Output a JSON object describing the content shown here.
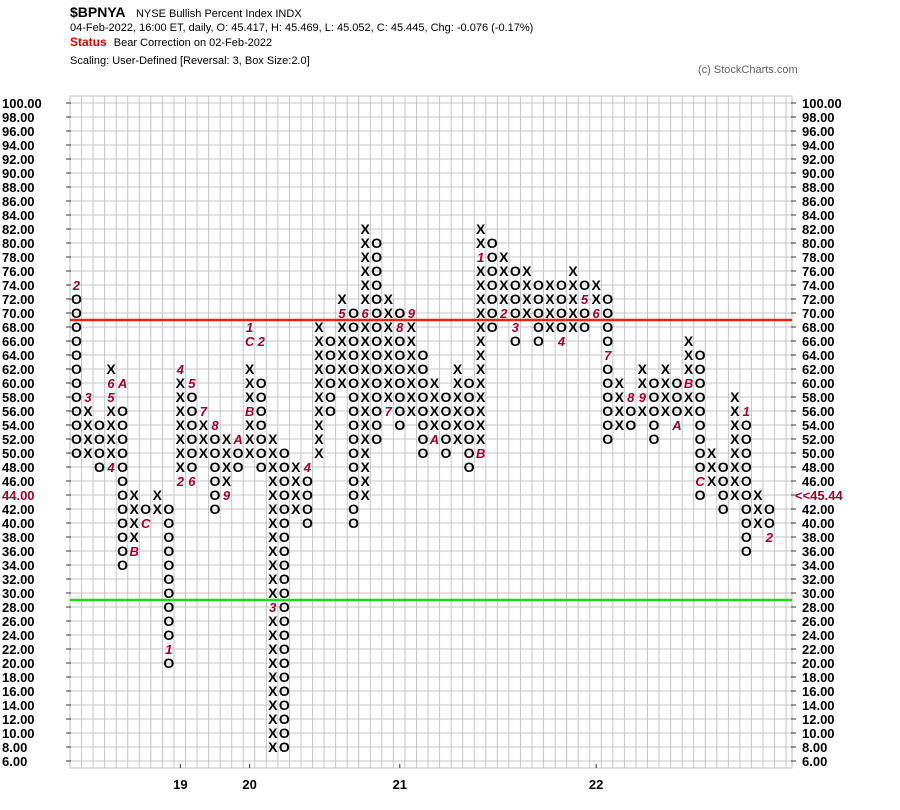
{
  "header": {
    "symbol": "$BPNYA",
    "name": "NYSE Bullish Percent Index  INDX",
    "quote": "04-Feb-2022, 16:00 ET, daily, O: 45.417, H: 45.469, L: 45.052, C: 45.445, Chg: -0.076 (-0.17%)",
    "status_label": "Status",
    "status_value": "Bear Correction on 02-Feb-2022",
    "scaling": "Scaling: User-Defined [Reversal: 3, Box Size:2.0]",
    "copyright": "(c) StockCharts.com"
  },
  "chart_data": {
    "type": "point-and-figure",
    "box_size": 2,
    "reversal": 3,
    "ylim": [
      6,
      100
    ],
    "y_ticks": [
      "100.00",
      "98.00",
      "96.00",
      "94.00",
      "92.00",
      "90.00",
      "88.00",
      "86.00",
      "84.00",
      "82.00",
      "80.00",
      "78.00",
      "76.00",
      "74.00",
      "72.00",
      "70.00",
      "68.00",
      "66.00",
      "64.00",
      "62.00",
      "60.00",
      "58.00",
      "56.00",
      "54.00",
      "52.00",
      "50.00",
      "48.00",
      "46.00",
      "44.00",
      "42.00",
      "40.00",
      "38.00",
      "36.00",
      "34.00",
      "32.00",
      "30.00",
      "28.00",
      "26.00",
      "24.00",
      "22.00",
      "20.00",
      "18.00",
      "16.00",
      "14.00",
      "12.00",
      "10.00",
      "8.00",
      "6.00"
    ],
    "left_highlight": {
      "value": 44,
      "label": "44.00"
    },
    "right_highlight": {
      "value": 44,
      "label": "<<45.44"
    },
    "x_labels": [
      {
        "col": 9,
        "label": "19"
      },
      {
        "col": 15,
        "label": "20"
      },
      {
        "col": 28,
        "label": "21"
      },
      {
        "col": 45,
        "label": "22"
      }
    ],
    "reference_lines": [
      {
        "value": 69,
        "color": "#e8230f"
      },
      {
        "value": 29,
        "color": "#18dc18"
      }
    ],
    "colors": {
      "grid": "#c4c4c4",
      "mark": "#000000",
      "month": "#99002e"
    },
    "columns": [
      {
        "t": "O",
        "lo": 50,
        "hi": 72,
        "m": [
          [
            74,
            "2"
          ]
        ]
      },
      {
        "t": "X",
        "lo": 50,
        "hi": 56,
        "m": [
          [
            58,
            "3"
          ]
        ]
      },
      {
        "t": "O",
        "lo": 48,
        "hi": 54
      },
      {
        "t": "X",
        "lo": 50,
        "hi": 62,
        "m": [
          [
            48,
            "4"
          ],
          [
            60,
            "6"
          ],
          [
            58,
            "5"
          ]
        ]
      },
      {
        "t": "O",
        "lo": 34,
        "hi": 56,
        "m": [
          [
            60,
            "A"
          ]
        ]
      },
      {
        "t": "X",
        "lo": 38,
        "hi": 44,
        "m": [
          [
            36,
            "B"
          ]
        ]
      },
      {
        "t": "O",
        "lo": 40,
        "hi": 42,
        "m": [
          [
            40,
            "C"
          ]
        ]
      },
      {
        "t": "X",
        "lo": 42,
        "hi": 44
      },
      {
        "t": "O",
        "lo": 20,
        "hi": 42,
        "m": [
          [
            22,
            "1"
          ]
        ]
      },
      {
        "t": "X",
        "lo": 48,
        "hi": 60,
        "m": [
          [
            62,
            "4"
          ],
          [
            46,
            "2"
          ]
        ]
      },
      {
        "t": "O",
        "lo": 48,
        "hi": 58,
        "m": [
          [
            60,
            "5"
          ],
          [
            46,
            "6"
          ]
        ]
      },
      {
        "t": "X",
        "lo": 50,
        "hi": 54,
        "m": [
          [
            56,
            "7"
          ]
        ]
      },
      {
        "t": "O",
        "lo": 42,
        "hi": 52,
        "m": [
          [
            54,
            "8"
          ]
        ]
      },
      {
        "t": "X",
        "lo": 46,
        "hi": 52,
        "m": [
          [
            44,
            "9"
          ]
        ]
      },
      {
        "t": "O",
        "lo": 48,
        "hi": 50,
        "m": [
          [
            52,
            "A"
          ]
        ]
      },
      {
        "t": "X",
        "lo": 50,
        "hi": 62,
        "m": [
          [
            68,
            "1"
          ],
          [
            66,
            "C"
          ],
          [
            56,
            "B"
          ]
        ]
      },
      {
        "t": "O",
        "lo": 48,
        "hi": 60,
        "m": [
          [
            66,
            "2"
          ]
        ]
      },
      {
        "t": "X",
        "lo": 8,
        "hi": 52,
        "m": [
          [
            28,
            "3"
          ]
        ]
      },
      {
        "t": "O",
        "lo": 8,
        "hi": 50
      },
      {
        "t": "X",
        "lo": 42,
        "hi": 48
      },
      {
        "t": "O",
        "lo": 40,
        "hi": 46,
        "m": [
          [
            48,
            "4"
          ]
        ]
      },
      {
        "t": "X",
        "lo": 50,
        "hi": 68
      },
      {
        "t": "O",
        "lo": 56,
        "hi": 66
      },
      {
        "t": "X",
        "lo": 60,
        "hi": 72,
        "m": [
          [
            70,
            "5"
          ]
        ]
      },
      {
        "t": "O",
        "lo": 40,
        "hi": 70
      },
      {
        "t": "X",
        "lo": 44,
        "hi": 82,
        "m": [
          [
            70,
            "6"
          ]
        ]
      },
      {
        "t": "O",
        "lo": 52,
        "hi": 80
      },
      {
        "t": "X",
        "lo": 58,
        "hi": 72,
        "m": [
          [
            56,
            "7"
          ]
        ]
      },
      {
        "t": "O",
        "lo": 54,
        "hi": 70,
        "m": [
          [
            68,
            "8"
          ]
        ]
      },
      {
        "t": "X",
        "lo": 56,
        "hi": 68,
        "m": [
          [
            70,
            "9"
          ]
        ]
      },
      {
        "t": "O",
        "lo": 50,
        "hi": 64
      },
      {
        "t": "X",
        "lo": 52,
        "hi": 60,
        "m": [
          [
            52,
            "A"
          ]
        ]
      },
      {
        "t": "O",
        "lo": 50,
        "hi": 58
      },
      {
        "t": "X",
        "lo": 52,
        "hi": 62
      },
      {
        "t": "O",
        "lo": 48,
        "hi": 60
      },
      {
        "t": "X",
        "lo": 52,
        "hi": 82,
        "m": [
          [
            50,
            "B"
          ],
          [
            78,
            "1"
          ]
        ]
      },
      {
        "t": "O",
        "lo": 68,
        "hi": 80
      },
      {
        "t": "X",
        "lo": 72,
        "hi": 78,
        "m": [
          [
            70,
            "2"
          ]
        ]
      },
      {
        "t": "O",
        "lo": 66,
        "hi": 76,
        "m": [
          [
            68,
            "3"
          ]
        ]
      },
      {
        "t": "X",
        "lo": 70,
        "hi": 76
      },
      {
        "t": "O",
        "lo": 66,
        "hi": 74
      },
      {
        "t": "X",
        "lo": 68,
        "hi": 74
      },
      {
        "t": "O",
        "lo": 66,
        "hi": 74,
        "m": [
          [
            66,
            "4"
          ]
        ]
      },
      {
        "t": "X",
        "lo": 68,
        "hi": 76
      },
      {
        "t": "O",
        "lo": 68,
        "hi": 74,
        "m": [
          [
            72,
            "5"
          ]
        ]
      },
      {
        "t": "X",
        "lo": 72,
        "hi": 74,
        "m": [
          [
            70,
            "6"
          ]
        ]
      },
      {
        "t": "O",
        "lo": 52,
        "hi": 72,
        "m": [
          [
            64,
            "7"
          ]
        ]
      },
      {
        "t": "X",
        "lo": 54,
        "hi": 60
      },
      {
        "t": "O",
        "lo": 54,
        "hi": 58,
        "m": [
          [
            58,
            "8"
          ]
        ]
      },
      {
        "t": "X",
        "lo": 56,
        "hi": 62,
        "m": [
          [
            58,
            "9"
          ]
        ]
      },
      {
        "t": "O",
        "lo": 52,
        "hi": 60
      },
      {
        "t": "X",
        "lo": 56,
        "hi": 62
      },
      {
        "t": "O",
        "lo": 54,
        "hi": 60,
        "m": [
          [
            54,
            "A"
          ]
        ]
      },
      {
        "t": "X",
        "lo": 56,
        "hi": 66,
        "m": [
          [
            60,
            "B"
          ]
        ]
      },
      {
        "t": "O",
        "lo": 44,
        "hi": 64,
        "m": [
          [
            46,
            "C"
          ]
        ]
      },
      {
        "t": "X",
        "lo": 46,
        "hi": 50
      },
      {
        "t": "O",
        "lo": 42,
        "hi": 48
      },
      {
        "t": "X",
        "lo": 44,
        "hi": 58
      },
      {
        "t": "O",
        "lo": 36,
        "hi": 56,
        "m": [
          [
            56,
            "1"
          ]
        ]
      },
      {
        "t": "X",
        "lo": 40,
        "hi": 44
      },
      {
        "t": "O",
        "lo": 40,
        "hi": 42,
        "m": [
          [
            38,
            "2"
          ]
        ]
      }
    ]
  }
}
